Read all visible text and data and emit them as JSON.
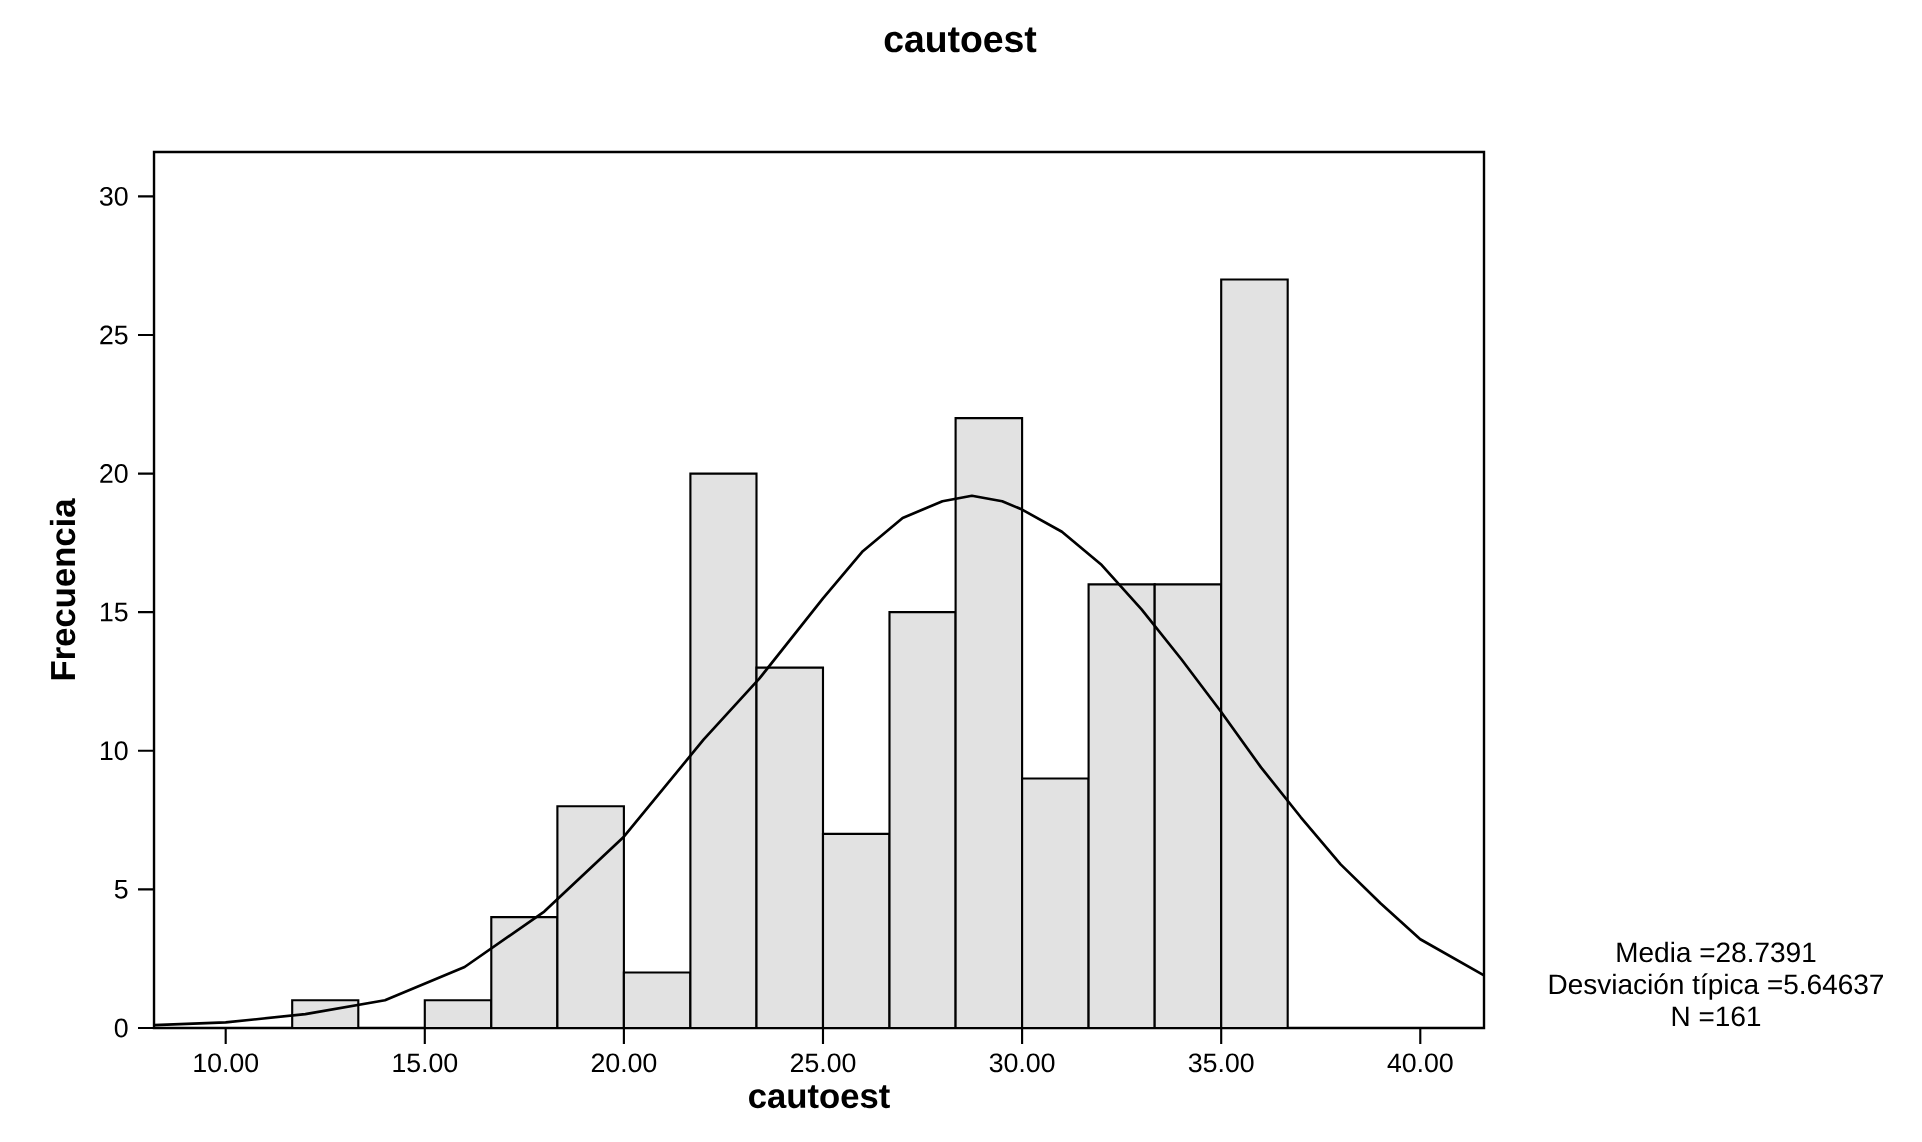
{
  "chart_data": {
    "type": "histogram",
    "title": "cautoest",
    "xlabel": "cautoest",
    "ylabel": "Frecuencia",
    "bins": [
      11.67,
      13.33,
      15.0,
      16.67,
      18.33,
      20.0,
      21.67,
      23.33,
      25.0,
      26.67,
      28.33,
      30.0,
      31.67,
      33.33,
      35.0,
      36.67
    ],
    "values": [
      1,
      0,
      1,
      4,
      8,
      2,
      20,
      13,
      7,
      15,
      22,
      9,
      16,
      16,
      27
    ],
    "color": "#e2e2e2",
    "series": [
      {
        "type": "line",
        "color": "#000000",
        "x": [
          8.2,
          10,
          12,
          14,
          16,
          18,
          20,
          22,
          23.4,
          25,
          26,
          27,
          28,
          28.74,
          29.5,
          30,
          31,
          32,
          33,
          34,
          35,
          36,
          37,
          38,
          39,
          40,
          41.6
        ],
        "values": [
          0.1,
          0.2,
          0.5,
          1.0,
          2.2,
          4.2,
          6.9,
          10.4,
          12.6,
          15.5,
          17.2,
          18.4,
          19.0,
          19.2,
          19.0,
          18.7,
          17.9,
          16.7,
          15.1,
          13.3,
          11.4,
          9.4,
          7.6,
          5.9,
          4.5,
          3.2,
          1.9
        ]
      }
    ],
    "xlim": [
      8.2,
      41.6
    ],
    "ylim": [
      0,
      31.6
    ],
    "xticks": [
      {
        "value": 10,
        "label": "10.00"
      },
      {
        "value": 15,
        "label": "15.00"
      },
      {
        "value": 20,
        "label": "20.00"
      },
      {
        "value": 25,
        "label": "25.00"
      },
      {
        "value": 30,
        "label": "30.00"
      },
      {
        "value": 35,
        "label": "35.00"
      },
      {
        "value": 40,
        "label": "40.00"
      }
    ],
    "yticks": [
      0,
      5,
      10,
      15,
      20,
      25,
      30
    ],
    "annotations": [
      "Media =28.7391",
      "Desviación típica =5.64637",
      "N =161"
    ]
  }
}
